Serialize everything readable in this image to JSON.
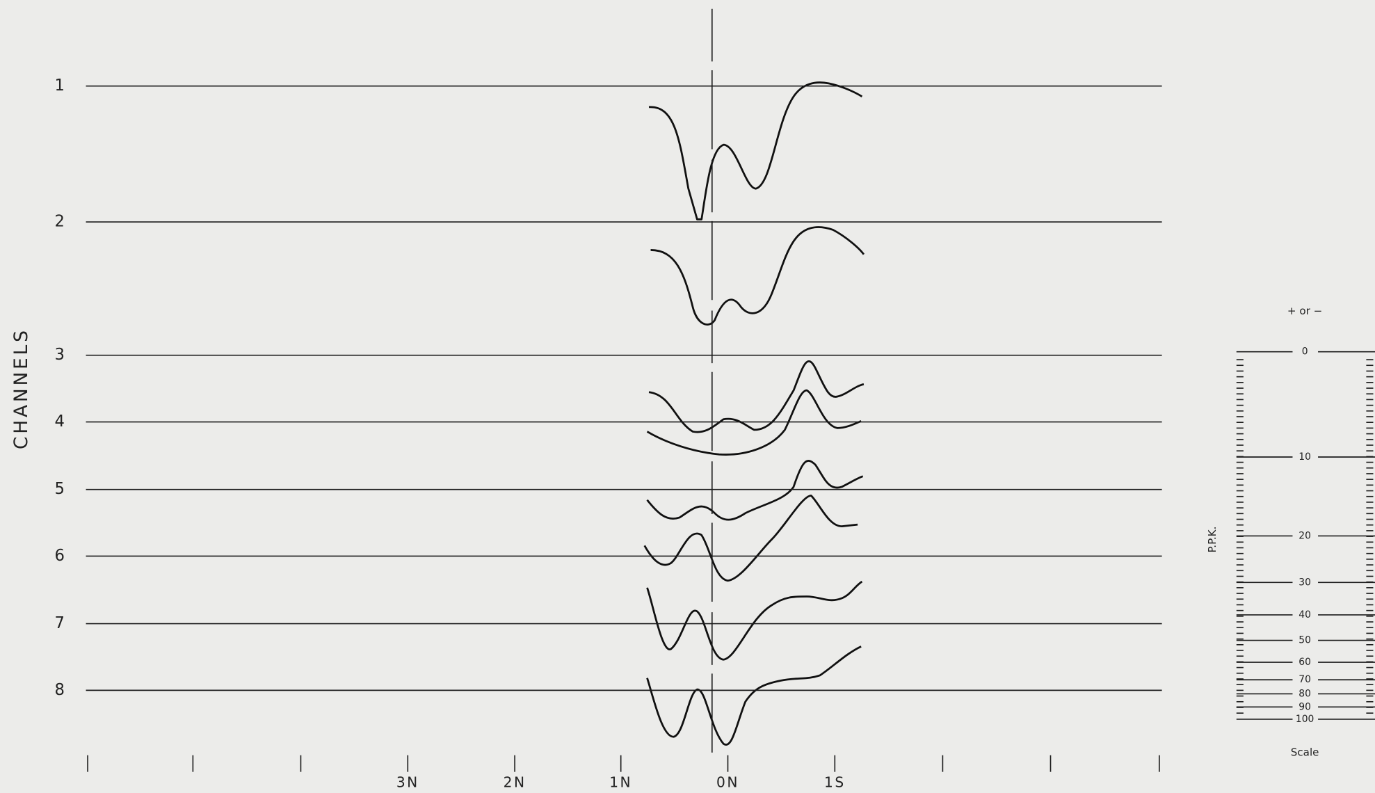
{
  "axis_title": "CHANNELS",
  "channels": [
    "1",
    "2",
    "3",
    "4",
    "5",
    "6",
    "7",
    "8"
  ],
  "stations": [
    "3N",
    "2N",
    "1N",
    "0N",
    "1S"
  ],
  "scale": {
    "sign_note": "+ or −",
    "unit": "P.P.K.",
    "caption": "Scale",
    "labels": [
      "0",
      "10",
      "20",
      "30",
      "40",
      "50",
      "60",
      "70",
      "80",
      "90",
      "100"
    ]
  }
}
